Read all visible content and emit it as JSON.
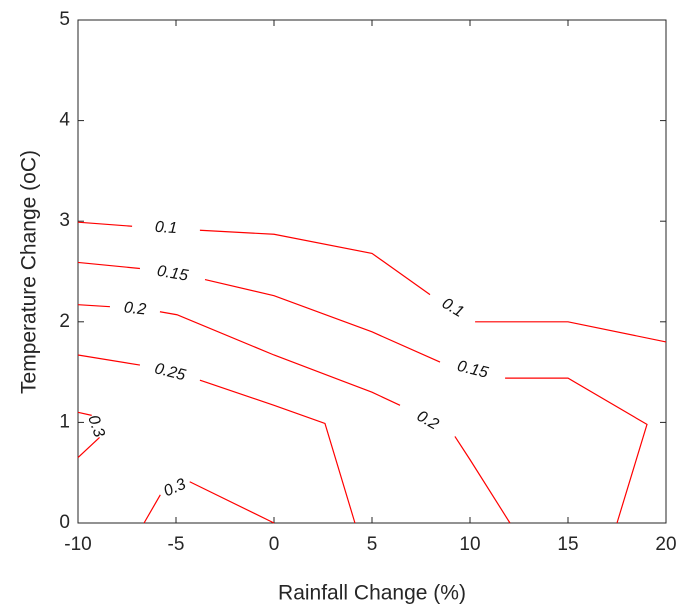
{
  "chart_data": {
    "type": "contour",
    "xlabel": "Rainfall Change (%)",
    "ylabel": "Temperature Change (oC)",
    "xlim": [
      -10,
      20
    ],
    "xticks": [
      -10,
      -5,
      0,
      5,
      10,
      15,
      20
    ],
    "ylim": [
      0,
      5
    ],
    "yticks": [
      0,
      1,
      2,
      3,
      4,
      5
    ],
    "color": "#ff0000",
    "series": [
      {
        "level": 0.1,
        "x": [
          -10,
          -7.24,
          null,
          -3.78,
          0,
          5,
          7.96,
          null,
          10.26,
          15,
          20
        ],
        "y": [
          2.99,
          2.95,
          null,
          2.91,
          2.87,
          2.68,
          2.27,
          null,
          2.0,
          2.0,
          1.8
        ]
      },
      {
        "level": 0.15,
        "x": [
          -10,
          -6.84,
          null,
          -3.52,
          0,
          5,
          8.47,
          null,
          11.79,
          15,
          19.03,
          17.5
        ],
        "y": [
          2.59,
          2.53,
          null,
          2.42,
          2.26,
          1.9,
          1.6,
          null,
          1.44,
          1.44,
          0.98,
          0
        ]
      },
      {
        "level": 0.2,
        "x": [
          -10,
          -8.37,
          null,
          -5.82,
          -4.95,
          0,
          5,
          6.43,
          null,
          9.23,
          10,
          12.04
        ],
        "y": [
          2.17,
          2.15,
          null,
          2.1,
          2.07,
          1.67,
          1.3,
          1.17,
          null,
          0.86,
          0.63,
          0
        ]
      },
      {
        "level": 0.25,
        "x": [
          -10,
          -6.84,
          null,
          -3.78,
          0,
          2.6,
          4.13
        ],
        "y": [
          1.67,
          1.57,
          null,
          1.42,
          1.17,
          0.99,
          0
        ]
      },
      {
        "level": 0.3,
        "x": [
          -10,
          -9.3,
          null,
          -8.9,
          -10
        ],
        "y": [
          1.1,
          1.07,
          null,
          0.85,
          0.65
        ]
      },
      {
        "level": 0.3,
        "x": [
          -6.63,
          -5.8,
          null,
          -4.3,
          0
        ],
        "y": [
          0,
          0.28,
          null,
          0.41,
          0
        ]
      }
    ]
  }
}
